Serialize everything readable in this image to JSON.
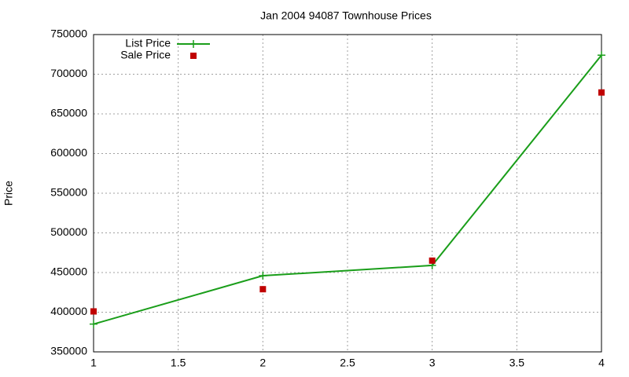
{
  "chart_data": {
    "type": "line",
    "title": "Jan 2004 94087 Townhouse Prices",
    "y_label": "Price",
    "x": [
      1,
      2,
      3,
      4
    ],
    "series": [
      {
        "name": "List Price",
        "color": "#1a9e1a",
        "style": "linespoints",
        "values": [
          385000,
          446000,
          459000,
          724000
        ]
      },
      {
        "name": "Sale Price",
        "color": "#c00000",
        "style": "points",
        "values": [
          401000,
          429000,
          465000,
          677000
        ]
      }
    ],
    "xlim": [
      1,
      4
    ],
    "xticks": [
      1,
      1.5,
      2,
      2.5,
      3,
      3.5,
      4
    ],
    "ylim": [
      350000,
      750000
    ],
    "yticks": [
      350000,
      400000,
      450000,
      500000,
      550000,
      600000,
      650000,
      700000,
      750000
    ],
    "grid": true,
    "legend": "top-left"
  }
}
